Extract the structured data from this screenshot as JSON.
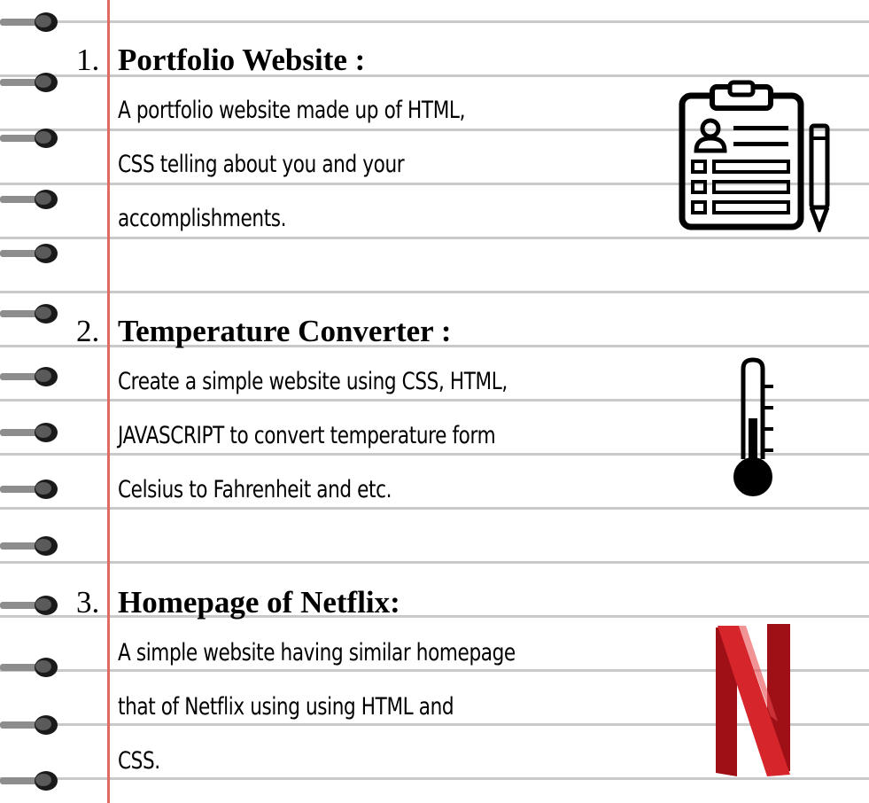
{
  "projects": [
    {
      "number": "1.",
      "title": "Portfolio Website :",
      "description": [
        "A portfolio website made up of HTML,",
        "CSS telling about you and your",
        "accomplishments."
      ],
      "icon": "clipboard-icon"
    },
    {
      "number": "2.",
      "title": "Temperature Converter :",
      "description": [
        "Create a simple website using CSS, HTML,",
        "JAVASCRIPT to convert temperature form",
        "Celsius to Fahrenheit and etc."
      ],
      "icon": "thermometer-icon"
    },
    {
      "number": "3.",
      "title": "Homepage of Netflix:",
      "description": [
        "A simple website having similar homepage",
        "that of Netflix using using HTML and",
        "CSS."
      ],
      "icon": "netflix-logo-icon"
    }
  ],
  "colors": {
    "rule": "#c9c9c9",
    "margin": "#e06a60",
    "netflix_red": "#c0141c"
  }
}
